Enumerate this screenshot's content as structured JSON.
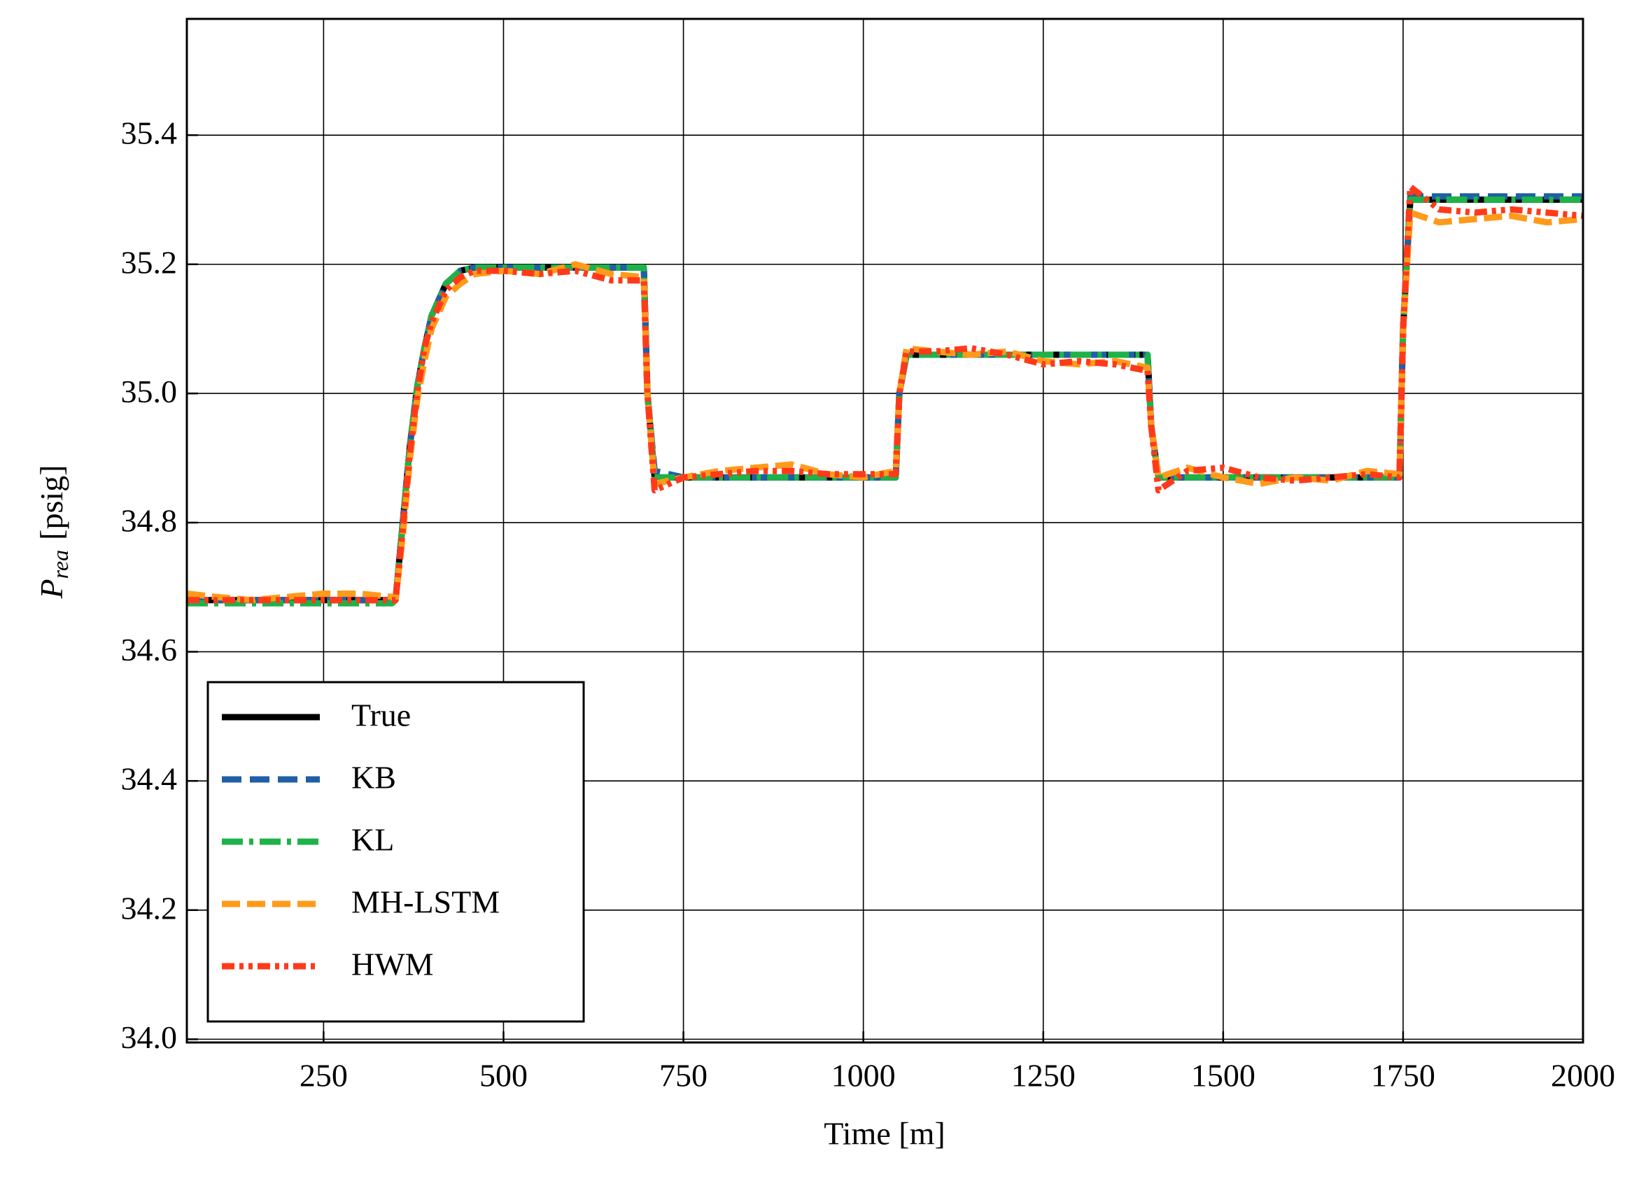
{
  "chart_data": {
    "type": "line",
    "xlabel": "Time [m]",
    "ylabel": {
      "symbol": "P",
      "subscript": "rea",
      "unit": "[psig]"
    },
    "x": [
      60,
      100,
      150,
      200,
      250,
      300,
      345,
      350,
      360,
      370,
      380,
      390,
      400,
      420,
      440,
      460,
      500,
      550,
      600,
      650,
      695,
      700,
      710,
      750,
      800,
      850,
      900,
      950,
      1000,
      1045,
      1050,
      1060,
      1100,
      1150,
      1200,
      1250,
      1300,
      1350,
      1395,
      1400,
      1410,
      1450,
      1500,
      1550,
      1600,
      1650,
      1700,
      1745,
      1750,
      1760,
      1800,
      1850,
      1900,
      1950,
      2000
    ],
    "series": [
      {
        "name": "True",
        "color": "#000000",
        "values": [
          34.68,
          34.68,
          34.68,
          34.68,
          34.68,
          34.68,
          34.68,
          34.68,
          34.8,
          34.92,
          35.01,
          35.07,
          35.12,
          35.17,
          35.19,
          35.195,
          35.195,
          35.195,
          35.195,
          35.195,
          35.195,
          35.0,
          34.87,
          34.87,
          34.87,
          34.87,
          34.87,
          34.87,
          34.87,
          34.87,
          35.0,
          35.06,
          35.06,
          35.06,
          35.06,
          35.06,
          35.06,
          35.06,
          35.06,
          34.95,
          34.87,
          34.87,
          34.87,
          34.87,
          34.87,
          34.87,
          34.87,
          34.87,
          35.1,
          35.3,
          35.3,
          35.3,
          35.3,
          35.3,
          35.3
        ]
      },
      {
        "name": "KB",
        "color": "#1f5fa6",
        "values": [
          34.68,
          34.68,
          34.68,
          34.68,
          34.68,
          34.68,
          34.68,
          34.68,
          34.8,
          34.92,
          35.01,
          35.07,
          35.12,
          35.17,
          35.19,
          35.195,
          35.195,
          35.195,
          35.195,
          35.195,
          35.195,
          35.0,
          34.88,
          34.87,
          34.87,
          34.87,
          34.87,
          34.87,
          34.87,
          34.87,
          35.0,
          35.06,
          35.06,
          35.06,
          35.06,
          35.06,
          35.06,
          35.06,
          35.06,
          34.95,
          34.87,
          34.87,
          34.87,
          34.87,
          34.87,
          34.87,
          34.87,
          34.87,
          35.1,
          35.305,
          35.305,
          35.305,
          35.305,
          35.305,
          35.305
        ]
      },
      {
        "name": "KL",
        "color": "#1db34a",
        "values": [
          34.675,
          34.675,
          34.675,
          34.675,
          34.675,
          34.675,
          34.675,
          34.68,
          34.8,
          34.92,
          35.01,
          35.07,
          35.12,
          35.17,
          35.19,
          35.195,
          35.195,
          35.195,
          35.195,
          35.195,
          35.195,
          35.0,
          34.87,
          34.87,
          34.87,
          34.87,
          34.87,
          34.87,
          34.87,
          34.87,
          35.0,
          35.06,
          35.06,
          35.06,
          35.06,
          35.06,
          35.06,
          35.06,
          35.06,
          34.95,
          34.87,
          34.87,
          34.87,
          34.87,
          34.87,
          34.87,
          34.87,
          34.87,
          35.1,
          35.3,
          35.3,
          35.3,
          35.3,
          35.3,
          35.3
        ]
      },
      {
        "name": "MH-LSTM",
        "color": "#ff9a1a",
        "values": [
          34.69,
          34.685,
          34.68,
          34.685,
          34.69,
          34.69,
          34.685,
          34.68,
          34.78,
          34.9,
          34.99,
          35.05,
          35.1,
          35.15,
          35.17,
          35.185,
          35.19,
          35.185,
          35.2,
          35.185,
          35.18,
          35.0,
          34.86,
          34.87,
          34.88,
          34.885,
          34.89,
          34.875,
          34.87,
          34.88,
          35.0,
          35.07,
          35.065,
          35.06,
          35.065,
          35.05,
          35.045,
          35.05,
          35.04,
          34.95,
          34.87,
          34.885,
          34.87,
          34.86,
          34.87,
          34.865,
          34.88,
          34.875,
          35.1,
          35.28,
          35.265,
          35.27,
          35.275,
          35.265,
          35.27
        ]
      },
      {
        "name": "HWM",
        "color": "#ff3a1a",
        "values": [
          34.68,
          34.68,
          34.68,
          34.68,
          34.68,
          34.68,
          34.68,
          34.68,
          34.79,
          34.91,
          35.0,
          35.07,
          35.11,
          35.16,
          35.18,
          35.19,
          35.19,
          35.185,
          35.19,
          35.175,
          35.175,
          35.0,
          34.85,
          34.87,
          34.875,
          34.88,
          34.88,
          34.875,
          34.875,
          34.875,
          35.0,
          35.065,
          35.065,
          35.07,
          35.06,
          35.045,
          35.05,
          35.045,
          35.035,
          34.95,
          34.85,
          34.88,
          34.885,
          34.87,
          34.865,
          34.87,
          34.875,
          34.87,
          35.1,
          35.32,
          35.285,
          35.28,
          35.285,
          35.28,
          35.275
        ]
      }
    ],
    "xlim": [
      60,
      2000
    ],
    "ylim": [
      33.995,
      35.58
    ],
    "xticks": [
      250,
      500,
      750,
      1000,
      1250,
      1500,
      1750,
      2000
    ],
    "yticks": [
      {
        "value": 34.0,
        "label": "34.0"
      },
      34.2,
      34.4,
      34.6,
      34.8,
      {
        "value": 35.0,
        "label": "35.0"
      },
      35.2,
      35.4
    ],
    "grid": true,
    "legend": "lower left"
  }
}
